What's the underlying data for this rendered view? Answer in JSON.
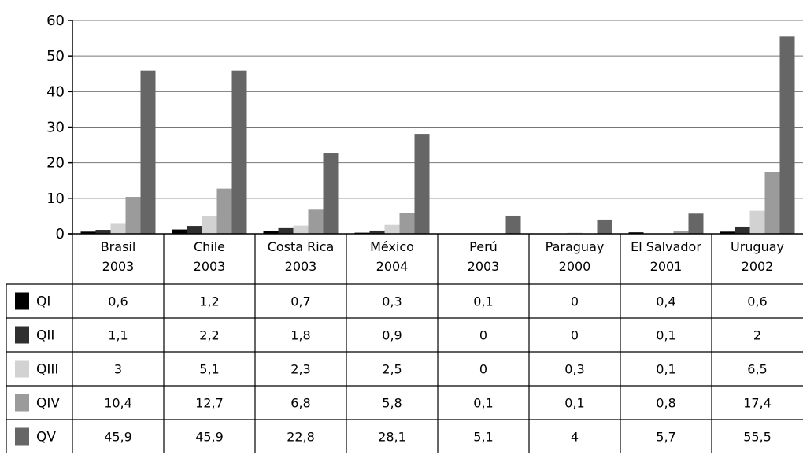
{
  "chart_data": {
    "type": "bar",
    "title": "",
    "xlabel": "",
    "ylabel": "",
    "ylim": [
      0,
      60
    ],
    "y_ticks": [
      0,
      10,
      20,
      30,
      40,
      50,
      60
    ],
    "grid": true,
    "legend": "table-left",
    "categories": [
      [
        "Brasil",
        "2003"
      ],
      [
        "Chile",
        "2003"
      ],
      [
        "Costa Rica",
        "2003"
      ],
      [
        "México",
        "2004"
      ],
      [
        "Perú",
        "2003"
      ],
      [
        "Paraguay",
        "2000"
      ],
      [
        "El Salvador",
        "2001"
      ],
      [
        "Uruguay",
        "2002"
      ]
    ],
    "series": [
      {
        "name": "QI",
        "color": "#000000",
        "values": [
          0.6,
          1.2,
          0.7,
          0.3,
          0.1,
          0,
          0.4,
          0.6
        ],
        "labels": [
          "0,6",
          "1,2",
          "0,7",
          "0,3",
          "0,1",
          "0",
          "0,4",
          "0,6"
        ]
      },
      {
        "name": "QII",
        "color": "#2f2f2f",
        "values": [
          1.1,
          2.2,
          1.8,
          0.9,
          0,
          0,
          0.1,
          2
        ],
        "labels": [
          "1,1",
          "2,2",
          "1,8",
          "0,9",
          "0",
          "0",
          "0,1",
          "2"
        ]
      },
      {
        "name": "QIII",
        "color": "#d2d2d2",
        "values": [
          3,
          5.1,
          2.3,
          2.5,
          0,
          0.3,
          0.1,
          6.5
        ],
        "labels": [
          "3",
          "5,1",
          "2,3",
          "2,5",
          "0",
          "0,3",
          "0,1",
          "6,5"
        ]
      },
      {
        "name": "QIV",
        "color": "#9b9b9b",
        "values": [
          10.4,
          12.7,
          6.8,
          5.8,
          0.1,
          0.1,
          0.8,
          17.4
        ],
        "labels": [
          "10,4",
          "12,7",
          "6,8",
          "5,8",
          "0,1",
          "0,1",
          "0,8",
          "17,4"
        ]
      },
      {
        "name": "QV",
        "color": "#666666",
        "values": [
          45.9,
          45.9,
          22.8,
          28.1,
          5.1,
          4,
          5.7,
          55.5
        ],
        "labels": [
          "45,9",
          "45,9",
          "22,8",
          "28,1",
          "5,1",
          "4",
          "5,7",
          "55,5"
        ]
      }
    ]
  }
}
